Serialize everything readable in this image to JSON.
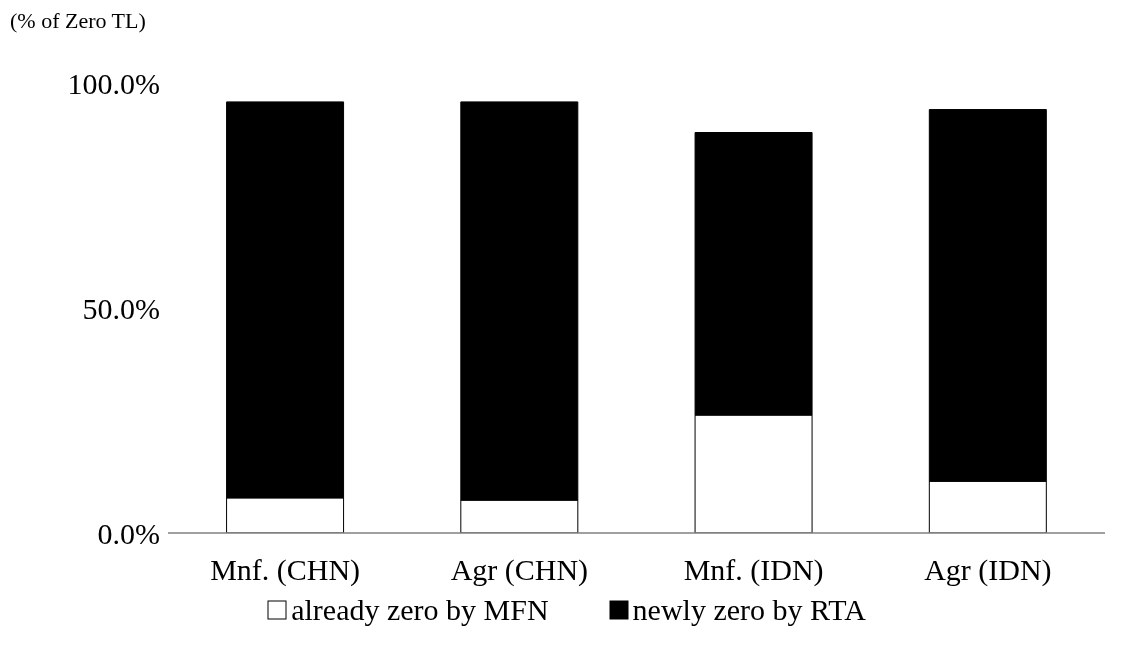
{
  "chart_data": {
    "type": "bar",
    "stacked": true,
    "ylabel": "(% of Zero TL)",
    "categories": [
      "Mnf. (CHN)",
      "Agr (CHN)",
      "Mnf. (IDN)",
      "Agr (IDN)"
    ],
    "series": [
      {
        "name": "already zero by MFN",
        "color": "#ffffff",
        "values": [
          7.8,
          7.3,
          26.2,
          11.5
        ]
      },
      {
        "name": "newly zero by RTA",
        "color": "#000000",
        "values": [
          88.0,
          88.5,
          62.8,
          82.6
        ]
      }
    ],
    "ylim": [
      0,
      100
    ],
    "yticks": [
      {
        "value": 0,
        "label": "0.0%"
      },
      {
        "value": 50,
        "label": "50.0%"
      },
      {
        "value": 100,
        "label": "100.0%"
      }
    ],
    "grid": false,
    "legend": "bottom"
  }
}
